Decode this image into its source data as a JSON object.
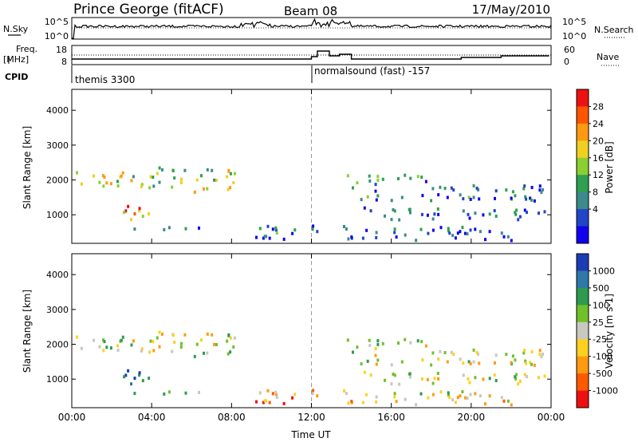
{
  "header": {
    "title": "Prince George (fitACF)",
    "beam": "Beam 08",
    "date": "17/May/2010"
  },
  "status_panels": {
    "nsky_label": "N.Sky",
    "nsky_ticks": [
      "10^5",
      "10^0"
    ],
    "nsearch_label": "N.Search",
    "nsearch_ticks": [
      "10^5",
      "10^0"
    ],
    "freq_label_1": "Freq.",
    "freq_label_2": "[MHz]",
    "freq_ticks": [
      "18",
      "8"
    ],
    "nave_label": "Nave",
    "nave_ticks": [
      "60",
      "0"
    ],
    "cpid_label": "CPID",
    "cpid_segments": [
      {
        "start_hour": 0,
        "label": "themis 3300"
      },
      {
        "start_hour": 12,
        "label": "normalsound (fast) -157"
      }
    ]
  },
  "chart_data": [
    {
      "type": "heatmap",
      "name_key": "power",
      "ylabel": "Slant Range [km]",
      "ylim": [
        180,
        4600
      ],
      "yticks": [
        "1000",
        "2000",
        "3000",
        "4000"
      ],
      "xlim_hours": [
        0,
        24
      ],
      "colorbar_label": "Power [dB]",
      "colorbar_ticks": [
        "28",
        "24",
        "20",
        "16",
        "12",
        "8",
        "4"
      ],
      "colorbar_colors": [
        "#ee1111",
        "#ff5500",
        "#ff9910",
        "#eed020",
        "#8ad030",
        "#2ea050",
        "#3c8a8c",
        "#2244c8",
        "#1000ee"
      ],
      "echo_bands": [
        {
          "t0": 0.2,
          "t1": 4.2,
          "r0": 1700,
          "r1": 2200,
          "level": 0.55
        },
        {
          "t0": 4.0,
          "t1": 8.3,
          "r0": 1600,
          "r1": 2300,
          "level": 0.5
        },
        {
          "t0": 2.2,
          "t1": 4.0,
          "r0": 700,
          "r1": 1200,
          "level": 0.7
        },
        {
          "t0": 3.0,
          "t1": 6.5,
          "r0": 500,
          "r1": 650,
          "level": 0.25
        },
        {
          "t0": 9.0,
          "t1": 14.0,
          "r0": 250,
          "r1": 650,
          "level": 0.2
        },
        {
          "t0": 13.3,
          "t1": 17.8,
          "r0": 1800,
          "r1": 2100,
          "level": 0.3
        },
        {
          "t0": 14.0,
          "t1": 23.9,
          "r0": 1350,
          "r1": 1800,
          "level": 0.25
        },
        {
          "t0": 14.5,
          "t1": 23.9,
          "r0": 800,
          "r1": 1150,
          "level": 0.25
        },
        {
          "t0": 13.5,
          "t1": 22.0,
          "r0": 200,
          "r1": 600,
          "level": 0.2
        }
      ]
    },
    {
      "type": "heatmap",
      "name_key": "velocity",
      "ylabel": "Slant Range [km]",
      "ylim": [
        180,
        4600
      ],
      "yticks": [
        "1000",
        "2000",
        "3000",
        "4000"
      ],
      "xlabel": "Time UT",
      "xticks": [
        "00:00",
        "04:00",
        "08:00",
        "12:00",
        "16:00",
        "20:00",
        "00:00"
      ],
      "xlim_hours": [
        0,
        24
      ],
      "colorbar_label": "Velocity [m s-1]",
      "colorbar_ticks": [
        "1000",
        "500",
        "100",
        "25",
        "-25",
        "-100",
        "-500",
        "-1000"
      ],
      "colorbar_colors": [
        "#1c3cb4",
        "#2e78aa",
        "#2e9a50",
        "#70c02a",
        "#c8c8c0",
        "#ffd020",
        "#ff9a10",
        "#ff5a00",
        "#ee1010"
      ],
      "echo_bands": [
        {
          "t0": 0.2,
          "t1": 4.2,
          "r0": 1700,
          "r1": 2200,
          "level": 0.5
        },
        {
          "t0": 4.0,
          "t1": 8.3,
          "r0": 1600,
          "r1": 2300,
          "level": 0.5
        },
        {
          "t0": 2.2,
          "t1": 4.0,
          "r0": 700,
          "r1": 1200,
          "level": 0.85
        },
        {
          "t0": 3.0,
          "t1": 6.5,
          "r0": 500,
          "r1": 650,
          "level": 0.65
        },
        {
          "t0": 9.0,
          "t1": 14.0,
          "r0": 250,
          "r1": 650,
          "level": 0.3
        },
        {
          "t0": 13.3,
          "t1": 17.8,
          "r0": 1800,
          "r1": 2100,
          "level": 0.5
        },
        {
          "t0": 14.0,
          "t1": 23.9,
          "r0": 1350,
          "r1": 1800,
          "level": 0.5
        },
        {
          "t0": 14.5,
          "t1": 23.9,
          "r0": 800,
          "r1": 1150,
          "level": 0.5
        },
        {
          "t0": 13.5,
          "t1": 22.0,
          "r0": 200,
          "r1": 600,
          "level": 0.45
        }
      ]
    }
  ]
}
